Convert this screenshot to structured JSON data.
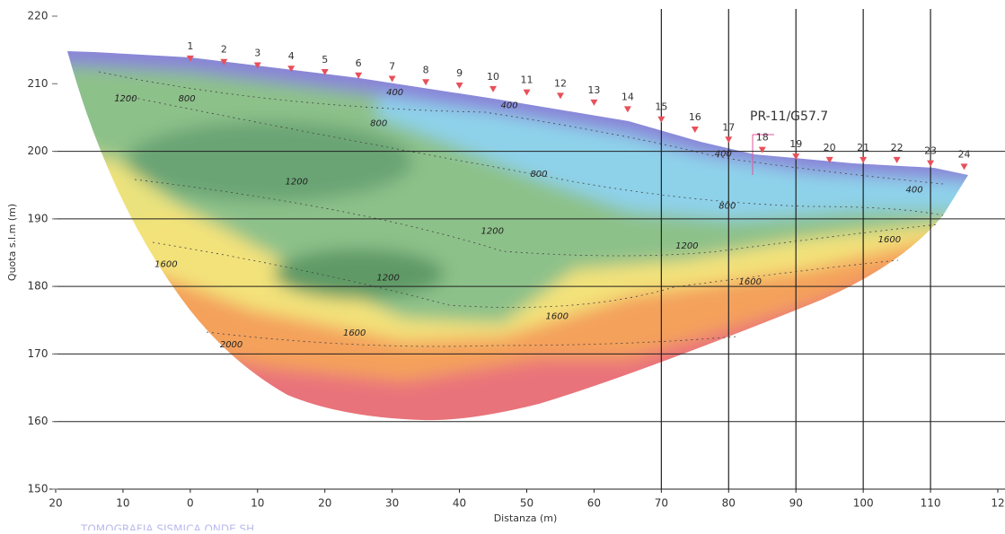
{
  "chart_data": {
    "type": "tomography",
    "x_label": "Distanza (m)",
    "y_label": "Quota s.l.m (m)",
    "footer": "TOMOGRAFIA SISMICA ONDE SH",
    "xlim": [
      -20,
      120
    ],
    "ylim": [
      150,
      220
    ],
    "xticks": [
      {
        "value": -20,
        "label": "20"
      },
      {
        "value": -10,
        "label": "10"
      },
      0,
      10,
      20,
      30,
      40,
      50,
      60,
      70,
      80,
      90,
      100,
      110,
      {
        "value": 120,
        "label": "12"
      }
    ],
    "yticks": [
      150,
      160,
      170,
      180,
      190,
      200,
      210,
      220
    ],
    "hgrid": [
      160,
      170,
      180,
      190,
      200
    ],
    "vgrid": [
      70,
      80,
      90,
      100,
      110
    ],
    "geophones": {
      "color": "#e8505a",
      "labels": [
        1,
        2,
        3,
        4,
        5,
        6,
        7,
        8,
        9,
        10,
        11,
        12,
        13,
        14,
        15,
        16,
        17,
        18,
        19,
        20,
        21,
        22,
        23,
        24
      ],
      "x": [
        0,
        5,
        10,
        15,
        20,
        25,
        30,
        35,
        40,
        45,
        50,
        55,
        60,
        65,
        70,
        75,
        80,
        85,
        90,
        95,
        100,
        105,
        110,
        115
      ],
      "elevation": [
        213.5,
        213,
        212.5,
        212,
        211.5,
        211,
        210.5,
        210,
        209.5,
        209,
        208.5,
        208,
        207,
        206,
        204.5,
        203,
        201.5,
        200,
        199,
        198.5,
        198.5,
        198.5,
        198,
        197.5
      ]
    },
    "annotation": {
      "text": "PR-11/G57.7",
      "color": "#e0559a"
    },
    "contour_labels": [
      {
        "text": "1200",
        "x": -9.6,
        "y": 207.8
      },
      {
        "text": "800",
        "x": -0.5,
        "y": 207.8
      },
      {
        "text": "400",
        "x": 30.4,
        "y": 208.7
      },
      {
        "text": "400",
        "x": 47.4,
        "y": 206.8
      },
      {
        "text": "800",
        "x": 28,
        "y": 204.1
      },
      {
        "text": "800",
        "x": 51.8,
        "y": 196.6
      },
      {
        "text": "1200",
        "x": 15.8,
        "y": 195.5
      },
      {
        "text": "800",
        "x": 79.8,
        "y": 191.9
      },
      {
        "text": "400",
        "x": 79.2,
        "y": 199.6
      },
      {
        "text": "400",
        "x": 107.6,
        "y": 194.3
      },
      {
        "text": "1200",
        "x": 44.9,
        "y": 188.2
      },
      {
        "text": "1200",
        "x": 73.8,
        "y": 186
      },
      {
        "text": "1600",
        "x": 103.9,
        "y": 186.9
      },
      {
        "text": "1600",
        "x": 83.2,
        "y": 180.7
      },
      {
        "text": "1200",
        "x": 29.4,
        "y": 181.3
      },
      {
        "text": "1600",
        "x": -3.6,
        "y": 183.3
      },
      {
        "text": "1600",
        "x": 54.5,
        "y": 175.6
      },
      {
        "text": "1600",
        "x": 24.4,
        "y": 173.1
      },
      {
        "text": "2000",
        "x": 6.1,
        "y": 171.4
      }
    ]
  }
}
